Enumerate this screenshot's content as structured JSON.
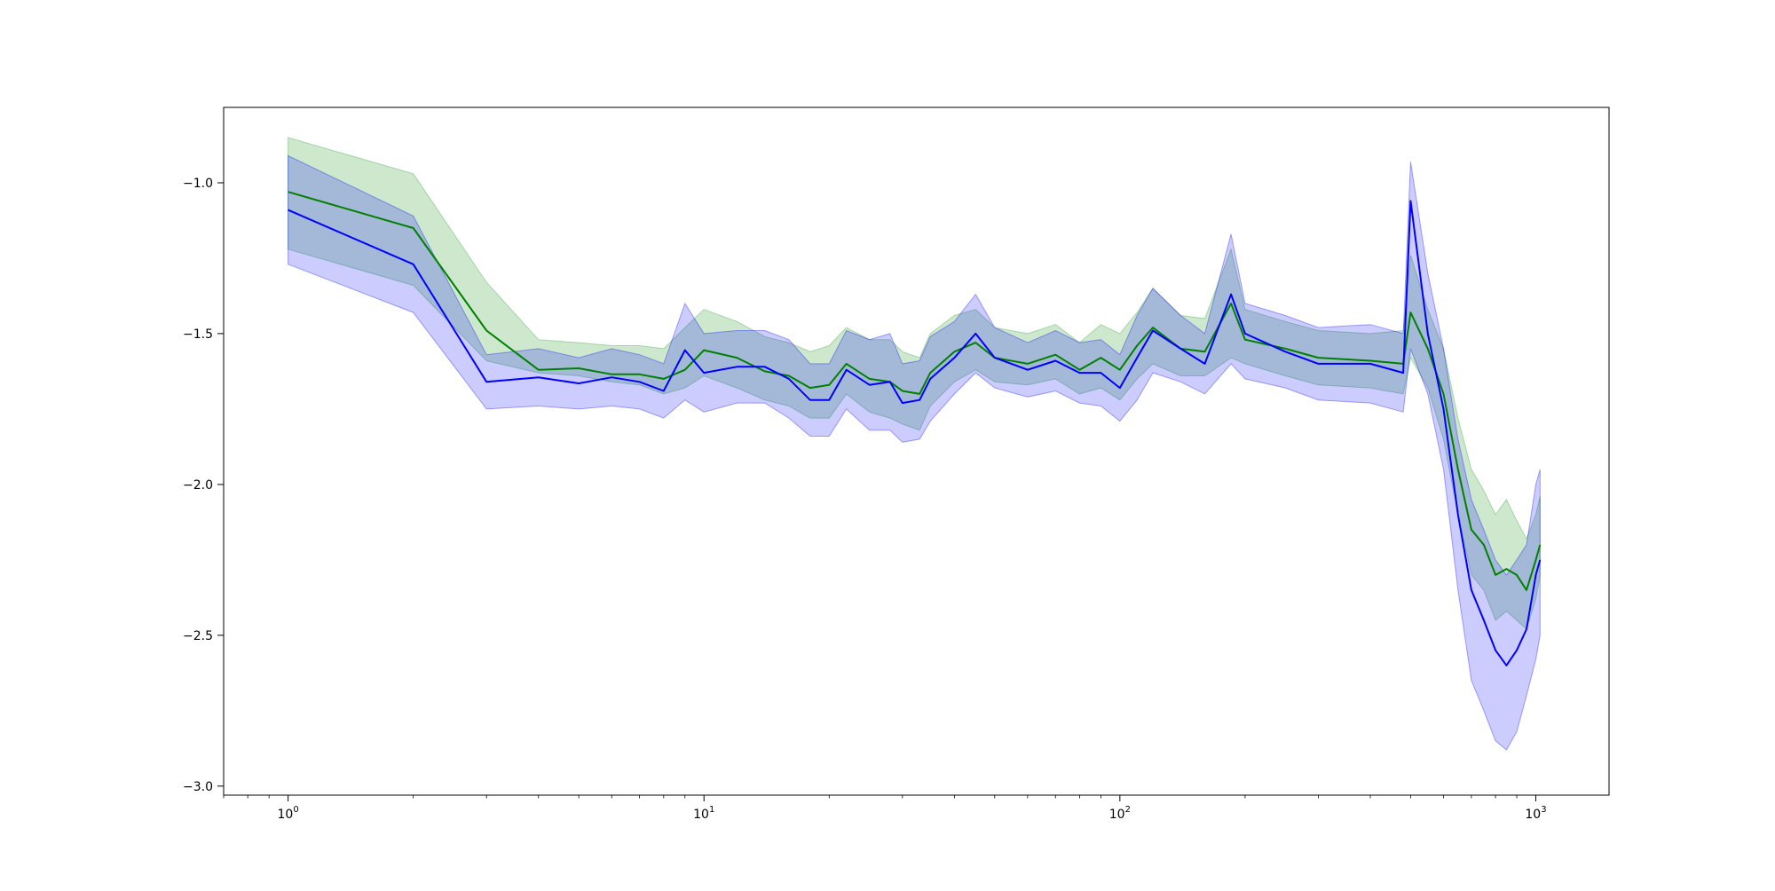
{
  "chart_data": {
    "type": "line",
    "title": "",
    "xlabel": "",
    "ylabel": "",
    "xscale": "log",
    "xlim": [
      0.7,
      1500
    ],
    "ylim": [
      -3.03,
      -0.75
    ],
    "grid": false,
    "legend": "none",
    "x_ticks": [
      {
        "value": 1,
        "base": "10",
        "exp": "0"
      },
      {
        "value": 10,
        "base": "10",
        "exp": "1"
      },
      {
        "value": 100,
        "base": "10",
        "exp": "2"
      },
      {
        "value": 1000,
        "base": "10",
        "exp": "3"
      }
    ],
    "y_ticks": [
      {
        "value": -1.0,
        "label": "−1.0"
      },
      {
        "value": -1.5,
        "label": "−1.5"
      },
      {
        "value": -2.0,
        "label": "−2.0"
      },
      {
        "value": -2.5,
        "label": "−2.5"
      },
      {
        "value": -3.0,
        "label": "−3.0"
      }
    ],
    "series": [
      {
        "color": "#008000",
        "band_color": "#2ca02c",
        "band_opacity": 0.24,
        "x": [
          1,
          2,
          3,
          4,
          5,
          6,
          7,
          8,
          9,
          10,
          12,
          14,
          16,
          18,
          20,
          22,
          25,
          28,
          30,
          33,
          35,
          40,
          45,
          50,
          60,
          70,
          80,
          90,
          100,
          110,
          120,
          140,
          160,
          185,
          200,
          250,
          300,
          400,
          480,
          500,
          550,
          600,
          650,
          700,
          750,
          800,
          850,
          900,
          950,
          1000,
          1024
        ],
        "y": [
          -1.03,
          -1.15,
          -1.49,
          -1.62,
          -1.615,
          -1.635,
          -1.635,
          -1.65,
          -1.62,
          -1.555,
          -1.58,
          -1.625,
          -1.64,
          -1.68,
          -1.67,
          -1.6,
          -1.65,
          -1.66,
          -1.69,
          -1.7,
          -1.63,
          -1.56,
          -1.53,
          -1.58,
          -1.6,
          -1.57,
          -1.62,
          -1.58,
          -1.62,
          -1.54,
          -1.48,
          -1.55,
          -1.56,
          -1.4,
          -1.52,
          -1.55,
          -1.58,
          -1.59,
          -1.6,
          -1.43,
          -1.55,
          -1.7,
          -1.95,
          -2.15,
          -2.2,
          -2.3,
          -2.28,
          -2.3,
          -2.35,
          -2.25,
          -2.2
        ],
        "lower": [
          -1.22,
          -1.34,
          -1.59,
          -1.63,
          -1.64,
          -1.66,
          -1.67,
          -1.7,
          -1.68,
          -1.64,
          -1.68,
          -1.72,
          -1.74,
          -1.78,
          -1.78,
          -1.7,
          -1.76,
          -1.78,
          -1.8,
          -1.82,
          -1.74,
          -1.66,
          -1.62,
          -1.66,
          -1.67,
          -1.65,
          -1.7,
          -1.68,
          -1.72,
          -1.65,
          -1.6,
          -1.64,
          -1.64,
          -1.58,
          -1.6,
          -1.64,
          -1.67,
          -1.68,
          -1.7,
          -1.58,
          -1.68,
          -1.85,
          -2.1,
          -2.3,
          -2.35,
          -2.45,
          -2.42,
          -2.45,
          -2.48,
          -2.38,
          -2.3
        ],
        "upper": [
          -0.85,
          -0.97,
          -1.33,
          -1.52,
          -1.53,
          -1.54,
          -1.54,
          -1.55,
          -1.48,
          -1.42,
          -1.46,
          -1.51,
          -1.53,
          -1.56,
          -1.54,
          -1.48,
          -1.52,
          -1.52,
          -1.56,
          -1.58,
          -1.5,
          -1.44,
          -1.42,
          -1.48,
          -1.5,
          -1.47,
          -1.53,
          -1.47,
          -1.5,
          -1.43,
          -1.35,
          -1.44,
          -1.45,
          -1.22,
          -1.42,
          -1.46,
          -1.49,
          -1.5,
          -1.49,
          -1.24,
          -1.42,
          -1.55,
          -1.78,
          -1.95,
          -2.02,
          -2.1,
          -2.05,
          -2.12,
          -2.18,
          -2.1,
          -2.04
        ]
      },
      {
        "color": "#0000ff",
        "band_color": "#0000ff",
        "band_opacity": 0.2,
        "x": [
          1,
          2,
          3,
          4,
          5,
          6,
          7,
          8,
          9,
          10,
          12,
          14,
          16,
          18,
          20,
          22,
          25,
          28,
          30,
          33,
          35,
          40,
          45,
          50,
          60,
          70,
          80,
          90,
          100,
          110,
          120,
          140,
          160,
          185,
          200,
          250,
          300,
          400,
          480,
          500,
          550,
          600,
          650,
          700,
          750,
          800,
          850,
          900,
          950,
          1000,
          1024
        ],
        "y": [
          -1.09,
          -1.27,
          -1.66,
          -1.645,
          -1.665,
          -1.645,
          -1.66,
          -1.69,
          -1.555,
          -1.63,
          -1.61,
          -1.61,
          -1.65,
          -1.72,
          -1.72,
          -1.62,
          -1.67,
          -1.66,
          -1.73,
          -1.72,
          -1.65,
          -1.58,
          -1.5,
          -1.58,
          -1.62,
          -1.59,
          -1.63,
          -1.63,
          -1.68,
          -1.58,
          -1.49,
          -1.55,
          -1.6,
          -1.37,
          -1.5,
          -1.56,
          -1.6,
          -1.6,
          -1.63,
          -1.06,
          -1.5,
          -1.75,
          -2.1,
          -2.35,
          -2.45,
          -2.55,
          -2.6,
          -2.55,
          -2.48,
          -2.3,
          -2.25
        ],
        "lower": [
          -1.27,
          -1.43,
          -1.75,
          -1.74,
          -1.75,
          -1.74,
          -1.75,
          -1.78,
          -1.72,
          -1.76,
          -1.73,
          -1.73,
          -1.78,
          -1.84,
          -1.84,
          -1.75,
          -1.82,
          -1.82,
          -1.86,
          -1.85,
          -1.79,
          -1.7,
          -1.63,
          -1.68,
          -1.71,
          -1.69,
          -1.73,
          -1.74,
          -1.79,
          -1.72,
          -1.63,
          -1.66,
          -1.7,
          -1.6,
          -1.65,
          -1.68,
          -1.72,
          -1.73,
          -1.76,
          -1.55,
          -1.7,
          -1.95,
          -2.35,
          -2.65,
          -2.75,
          -2.85,
          -2.88,
          -2.82,
          -2.7,
          -2.58,
          -2.5
        ],
        "upper": [
          -0.91,
          -1.11,
          -1.57,
          -1.55,
          -1.58,
          -1.55,
          -1.57,
          -1.6,
          -1.4,
          -1.5,
          -1.49,
          -1.49,
          -1.52,
          -1.6,
          -1.6,
          -1.49,
          -1.52,
          -1.5,
          -1.6,
          -1.59,
          -1.51,
          -1.46,
          -1.37,
          -1.48,
          -1.53,
          -1.49,
          -1.53,
          -1.52,
          -1.57,
          -1.44,
          -1.35,
          -1.44,
          -1.5,
          -1.17,
          -1.4,
          -1.44,
          -1.48,
          -1.47,
          -1.5,
          -0.93,
          -1.3,
          -1.55,
          -1.85,
          -2.05,
          -2.15,
          -2.25,
          -2.3,
          -2.25,
          -2.2,
          -2.0,
          -1.95
        ]
      }
    ]
  }
}
